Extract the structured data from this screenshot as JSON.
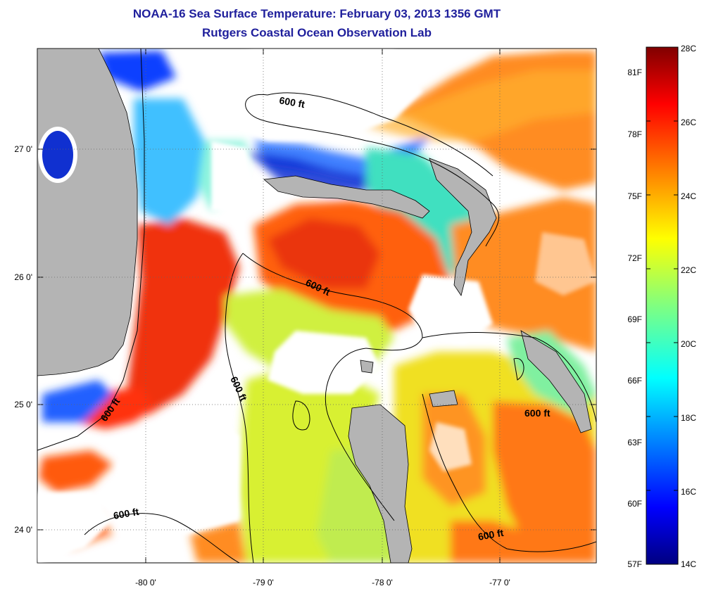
{
  "title": {
    "line1": "NOAA-16 Sea Surface Temperature:  February 03, 2013 1356 GMT",
    "line2": "Rutgers Coastal Ocean Observation Lab"
  },
  "axes": {
    "lon_ticks": [
      "-80 0'",
      "-79 0'",
      "-78 0'",
      "-77 0'"
    ],
    "lat_ticks": [
      "27 0'",
      "26 0'",
      "25 0'",
      "24 0'"
    ]
  },
  "contour_labels": [
    "600 ft",
    "600 ft",
    "600 ft",
    "600 ft",
    "600 ft",
    "600 ft"
  ],
  "colorbar": {
    "celsius": [
      "28C",
      "26C",
      "24C",
      "22C",
      "20C",
      "18C",
      "16C",
      "14C"
    ],
    "fahrenheit": [
      "81F",
      "78F",
      "75F",
      "72F",
      "69F",
      "66F",
      "63F",
      "60F",
      "57F"
    ],
    "colors": [
      "#800000",
      "#ff0000",
      "#ff8000",
      "#ffff00",
      "#80ff80",
      "#00ffff",
      "#0080ff",
      "#0000ff",
      "#000080"
    ]
  },
  "colors": {
    "land": "#b4b4b4",
    "cloud": "#ffffff",
    "title": "#1f1f9c"
  }
}
